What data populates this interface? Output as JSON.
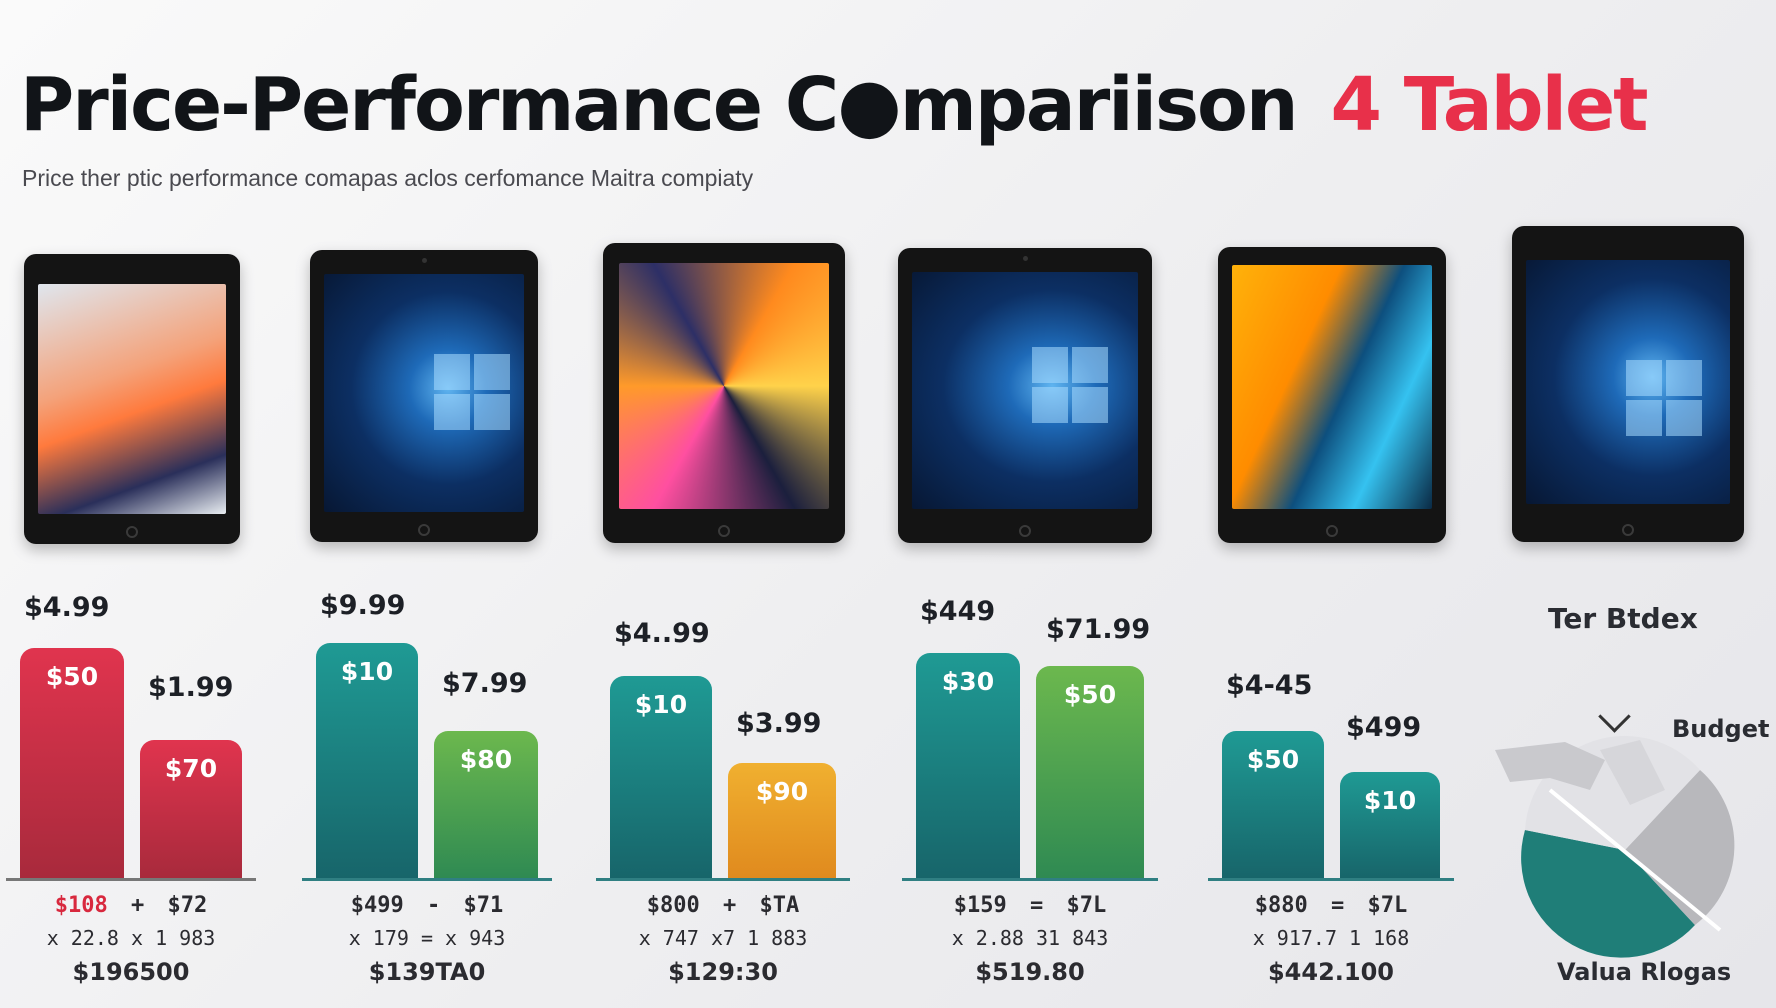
{
  "header": {
    "title": "Price-Performance C●mpariison",
    "title_accent": "4 Tablet",
    "subtitle": "Price ther ptic performance comapas aclos cerfomance Maitra compiaty"
  },
  "colors": {
    "red": "#d8283e",
    "teal": "#1f8f8a",
    "green": "#5aa64a",
    "yellow": "#e8a62a"
  },
  "chart_data": {
    "type": "bar",
    "groups": [
      {
        "price_top": "$4.99",
        "price_mid": "$1.99",
        "bars": [
          {
            "label": "$50",
            "value": 50,
            "color": "red"
          },
          {
            "label": "$70",
            "value": 30,
            "color": "red"
          }
        ],
        "row1_a": "$108",
        "row1_sep": "+",
        "row1_b": "$72",
        "row2": "x 22.8 x 1 983",
        "row3": "$196500"
      },
      {
        "price_top": "$9.99",
        "price_mid": "$7.99",
        "bars": [
          {
            "label": "$10",
            "value": 51,
            "color": "teal"
          },
          {
            "label": "$80",
            "value": 32,
            "color": "green"
          }
        ],
        "row1_a": "$499",
        "row1_sep": "-",
        "row1_b": "$71",
        "row2": "x 179 = x 943",
        "row3": "$139TA0"
      },
      {
        "price_top": "$4..99",
        "price_mid": "$3.99",
        "bars": [
          {
            "label": "$10",
            "value": 44,
            "color": "teal"
          },
          {
            "label": "$90",
            "value": 25,
            "color": "yellow"
          }
        ],
        "row1_a": "$800",
        "row1_sep": "+",
        "row1_b": "$TA",
        "row2": "x 747 x7 1 883",
        "row3": "$129:30"
      },
      {
        "price_top": "$449",
        "price_mid": "$71.99",
        "bars": [
          {
            "label": "$30",
            "value": 49,
            "color": "teal"
          },
          {
            "label": "$50",
            "value": 46,
            "color": "green"
          }
        ],
        "row1_a": "$159",
        "row1_sep": "=",
        "row1_b": "$7L",
        "row2": "x 2.88 31 843",
        "row3": "$519.80"
      },
      {
        "price_top": "$4-45",
        "price_mid": "$499",
        "bars": [
          {
            "label": "$50",
            "value": 32,
            "color": "teal"
          },
          {
            "label": "$10",
            "value": 23,
            "color": "teal"
          }
        ],
        "row1_a": "$880",
        "row1_sep": "=",
        "row1_b": "$7L",
        "row2": "x 917.7 1 168",
        "row3": "$442.100"
      }
    ]
  },
  "pie": {
    "top_label": "Ter Btdex",
    "budget_label": "Budget",
    "bottom_label": "Valua Rlogas"
  }
}
